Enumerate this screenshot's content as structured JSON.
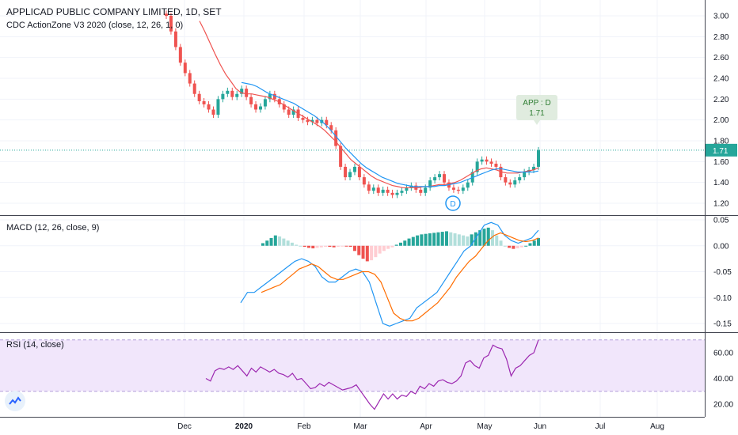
{
  "header": {
    "title": "APPLICAD PUBLIC COMPANY LIMITED, 1D, SET",
    "indicator": "CDC ActionZone V3 2020 (close, 12, 26, 1, 0)"
  },
  "panes": {
    "macd_title": "MACD (12, 26, close, 9)",
    "rsi_title": "RSI (14, close)"
  },
  "annotations": {
    "signal_label": "APP : D",
    "signal_value": "1.71",
    "marker_letter": "D",
    "price_tag": "1.71"
  },
  "colors": {
    "up": "#26a69a",
    "down": "#ef5350",
    "fast_ema": "#ef5350",
    "slow_ema": "#2196f3",
    "macd_line": "#2196f3",
    "signal_line": "#ff6d00",
    "rsi_line": "#9c27b0",
    "rsi_band": "#f1e6fb",
    "label_bg": "#e0ecdf",
    "label_text": "#2e7d32"
  },
  "chart_data": [
    {
      "type": "line",
      "title": "APPLICAD PUBLIC COMPANY LIMITED, 1D, SET",
      "ylim": [
        1.1,
        3.1
      ],
      "yticks": [
        "3.00",
        "2.80",
        "2.60",
        "2.40",
        "2.20",
        "2.00",
        "1.80",
        "1.60",
        "1.40",
        "1.20"
      ],
      "xticks": [
        "Dec",
        "2020",
        "Feb",
        "Mar",
        "Apr",
        "May",
        "Jun",
        "Jul",
        "Aug"
      ],
      "close": [
        3.0,
        2.85,
        2.7,
        2.55,
        2.45,
        2.35,
        2.25,
        2.18,
        2.15,
        2.1,
        2.05,
        2.2,
        2.25,
        2.28,
        2.22,
        2.25,
        2.3,
        2.22,
        2.15,
        2.1,
        2.13,
        2.2,
        2.25,
        2.2,
        2.15,
        2.1,
        2.05,
        2.1,
        2.02,
        2.0,
        1.98,
        2.0,
        1.97,
        2.0,
        1.95,
        1.9,
        1.75,
        1.55,
        1.45,
        1.5,
        1.55,
        1.45,
        1.38,
        1.32,
        1.35,
        1.3,
        1.33,
        1.3,
        1.28,
        1.3,
        1.32,
        1.35,
        1.37,
        1.33,
        1.3,
        1.35,
        1.42,
        1.45,
        1.48,
        1.4,
        1.35,
        1.33,
        1.32,
        1.35,
        1.4,
        1.5,
        1.6,
        1.62,
        1.6,
        1.58,
        1.55,
        1.45,
        1.4,
        1.38,
        1.42,
        1.45,
        1.5,
        1.52,
        1.55,
        1.71
      ],
      "ema_fast": [
        2.95,
        2.85,
        2.74,
        2.63,
        2.53,
        2.44,
        2.37,
        2.3,
        2.26,
        2.25,
        2.25,
        2.24,
        2.23,
        2.22,
        2.2,
        2.18,
        2.15,
        2.12,
        2.09,
        2.06,
        2.03,
        2.0,
        1.97,
        1.94,
        1.9,
        1.85,
        1.8,
        1.74,
        1.68,
        1.62,
        1.58,
        1.54,
        1.5,
        1.46,
        1.43,
        1.41,
        1.39,
        1.37,
        1.36,
        1.35,
        1.35,
        1.35,
        1.35,
        1.36,
        1.36,
        1.37,
        1.38,
        1.38,
        1.39,
        1.4,
        1.42,
        1.45,
        1.48,
        1.51,
        1.53,
        1.54,
        1.53,
        1.52,
        1.5,
        1.49,
        1.49,
        1.49,
        1.5,
        1.51,
        1.52,
        1.54
      ],
      "ema_slow": [
        2.36,
        2.35,
        2.34,
        2.32,
        2.29,
        2.26,
        2.24,
        2.22,
        2.2,
        2.18,
        2.16,
        2.13,
        2.1,
        2.07,
        2.04,
        2.0,
        1.96,
        1.91,
        1.85,
        1.79,
        1.73,
        1.68,
        1.63,
        1.58,
        1.54,
        1.51,
        1.48,
        1.45,
        1.43,
        1.41,
        1.39,
        1.38,
        1.37,
        1.36,
        1.36,
        1.36,
        1.36,
        1.36,
        1.37,
        1.37,
        1.38,
        1.39,
        1.4,
        1.42,
        1.44,
        1.46,
        1.48,
        1.5,
        1.52,
        1.53,
        1.53,
        1.52,
        1.51,
        1.5,
        1.5,
        1.5,
        1.5,
        1.51
      ]
    },
    {
      "type": "bar",
      "title": "MACD (12, 26, close, 9)",
      "ylim": [
        -0.16,
        0.05
      ],
      "yticks": [
        "0.05",
        "0.00",
        "-0.05",
        "-0.10",
        "-0.15"
      ],
      "histogram": [
        0.005,
        0.01,
        0.015,
        0.02,
        0.018,
        0.014,
        0.01,
        0.006,
        0.002,
        0.0,
        -0.002,
        -0.004,
        -0.005,
        -0.004,
        -0.003,
        -0.002,
        -0.002,
        -0.003,
        -0.002,
        -0.001,
        -0.001,
        -0.002,
        -0.01,
        -0.018,
        -0.025,
        -0.03,
        -0.028,
        -0.022,
        -0.015,
        -0.01,
        -0.006,
        -0.003,
        0.002,
        0.006,
        0.01,
        0.014,
        0.017,
        0.02,
        0.022,
        0.023,
        0.024,
        0.025,
        0.026,
        0.027,
        0.028,
        0.026,
        0.024,
        0.022,
        0.02,
        0.018,
        0.022,
        0.026,
        0.03,
        0.033,
        0.035,
        0.03,
        0.02,
        0.01,
        0.0,
        -0.004,
        -0.006,
        -0.005,
        -0.003,
        0.0,
        0.005,
        0.01,
        0.015
      ],
      "macd": [
        -0.11,
        -0.09,
        -0.09,
        -0.08,
        -0.07,
        -0.06,
        -0.05,
        -0.04,
        -0.03,
        -0.025,
        -0.03,
        -0.04,
        -0.06,
        -0.07,
        -0.07,
        -0.06,
        -0.05,
        -0.045,
        -0.05,
        -0.07,
        -0.11,
        -0.15,
        -0.155,
        -0.15,
        -0.145,
        -0.14,
        -0.12,
        -0.11,
        -0.1,
        -0.09,
        -0.07,
        -0.05,
        -0.03,
        -0.01,
        0.0,
        0.02,
        0.04,
        0.045,
        0.04,
        0.02,
        0.01,
        0.005,
        0.01,
        0.015,
        0.03
      ],
      "signal": [
        -0.09,
        -0.085,
        -0.08,
        -0.075,
        -0.065,
        -0.055,
        -0.045,
        -0.04,
        -0.035,
        -0.04,
        -0.05,
        -0.06,
        -0.065,
        -0.065,
        -0.06,
        -0.055,
        -0.05,
        -0.05,
        -0.055,
        -0.07,
        -0.1,
        -0.13,
        -0.14,
        -0.145,
        -0.145,
        -0.14,
        -0.13,
        -0.12,
        -0.11,
        -0.095,
        -0.08,
        -0.06,
        -0.045,
        -0.03,
        -0.02,
        -0.005,
        0.01,
        0.02,
        0.025,
        0.02,
        0.015,
        0.01,
        0.008,
        0.01,
        0.015
      ]
    },
    {
      "type": "line",
      "title": "RSI (14, close)",
      "ylim": [
        15,
        72
      ],
      "yticks": [
        "60.00",
        "40.00",
        "20.00"
      ],
      "band": [
        30,
        70
      ],
      "values": [
        40,
        38,
        46,
        48,
        47,
        49,
        47,
        50,
        46,
        42,
        48,
        45,
        49,
        47,
        45,
        47,
        44,
        43,
        41,
        44,
        39,
        40,
        36,
        32,
        33,
        36,
        34,
        37,
        35,
        33,
        31,
        32,
        33,
        35,
        30,
        25,
        20,
        16,
        22,
        28,
        24,
        28,
        24,
        27,
        26,
        30,
        28,
        34,
        32,
        36,
        34,
        38,
        39,
        37,
        36,
        38,
        42,
        52,
        54,
        50,
        48,
        56,
        58,
        66,
        64,
        63,
        55,
        42,
        48,
        50,
        54,
        58,
        60,
        70
      ]
    }
  ]
}
